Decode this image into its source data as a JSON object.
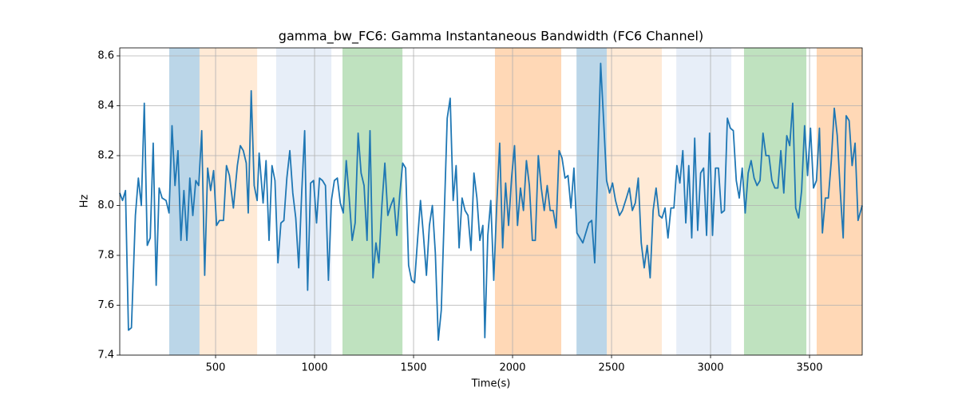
{
  "chart_data": {
    "type": "line",
    "title": "gamma_bw_FC6: Gamma Instantaneous Bandwidth (FC6 Channel)",
    "x_label": "Time(s)",
    "y_label": "Hz",
    "xlim": [
      16,
      3766
    ],
    "ylim": [
      7.4,
      8.632
    ],
    "xticks": [
      500,
      1000,
      1500,
      2000,
      2500,
      3000,
      3500
    ],
    "yticks": [
      7.4,
      7.6,
      7.8,
      {
        "value": 8.0,
        "label": "8.0"
      },
      8.2,
      8.4,
      8.6
    ],
    "grid": true,
    "span_alpha": 0.3,
    "spans": [
      {
        "x0": 266,
        "x1": 419,
        "color": "#1f77b4"
      },
      {
        "x0": 419,
        "x1": 710,
        "color": "#ffbb78"
      },
      {
        "x0": 806,
        "x1": 1085,
        "color": "#aec7e8"
      },
      {
        "x0": 1141,
        "x1": 1444,
        "color": "#2ca02c"
      },
      {
        "x0": 1911,
        "x1": 2246,
        "color": "#ff7f0e"
      },
      {
        "x0": 2323,
        "x1": 2476,
        "color": "#1f77b4"
      },
      {
        "x0": 2476,
        "x1": 2754,
        "color": "#ffbb78"
      },
      {
        "x0": 2827,
        "x1": 3105,
        "color": "#aec7e8"
      },
      {
        "x0": 3169,
        "x1": 3484,
        "color": "#2ca02c"
      },
      {
        "x0": 3536,
        "x1": 3766,
        "color": "#ff7f0e"
      }
    ],
    "series": [
      {
        "color": "#1f77b4",
        "x": [
          16,
          30,
          45,
          60,
          75,
          95,
          110,
          125,
          140,
          155,
          170,
          185,
          200,
          215,
          230,
          250,
          265,
          280,
          295,
          310,
          325,
          340,
          355,
          370,
          385,
          400,
          415,
          430,
          445,
          460,
          475,
          490,
          505,
          520,
          540,
          555,
          570,
          590,
          610,
          625,
          640,
          655,
          665,
          680,
          695,
          710,
          720,
          740,
          755,
          770,
          785,
          800,
          815,
          830,
          845,
          860,
          875,
          890,
          905,
          920,
          935,
          950,
          965,
          980,
          995,
          1010,
          1025,
          1040,
          1055,
          1070,
          1085,
          1100,
          1115,
          1130,
          1145,
          1160,
          1175,
          1190,
          1205,
          1220,
          1235,
          1250,
          1265,
          1280,
          1295,
          1310,
          1325,
          1340,
          1355,
          1370,
          1385,
          1400,
          1415,
          1430,
          1445,
          1460,
          1475,
          1490,
          1505,
          1520,
          1535,
          1550,
          1565,
          1580,
          1595,
          1610,
          1625,
          1640,
          1655,
          1670,
          1685,
          1700,
          1715,
          1730,
          1745,
          1760,
          1775,
          1790,
          1805,
          1820,
          1835,
          1850,
          1860,
          1875,
          1890,
          1905,
          1920,
          1935,
          1950,
          1965,
          1980,
          1995,
          2010,
          2025,
          2040,
          2055,
          2070,
          2085,
          2100,
          2115,
          2130,
          2145,
          2160,
          2175,
          2190,
          2205,
          2220,
          2235,
          2250,
          2265,
          2280,
          2295,
          2310,
          2325,
          2340,
          2355,
          2370,
          2385,
          2400,
          2415,
          2430,
          2445,
          2460,
          2475,
          2490,
          2505,
          2520,
          2540,
          2555,
          2575,
          2590,
          2605,
          2620,
          2635,
          2650,
          2665,
          2680,
          2695,
          2710,
          2725,
          2740,
          2755,
          2770,
          2785,
          2800,
          2815,
          2830,
          2845,
          2860,
          2875,
          2890,
          2905,
          2920,
          2935,
          2950,
          2965,
          2980,
          2995,
          3010,
          3025,
          3040,
          3055,
          3070,
          3085,
          3100,
          3115,
          3130,
          3145,
          3160,
          3175,
          3190,
          3205,
          3220,
          3235,
          3250,
          3265,
          3280,
          3295,
          3310,
          3325,
          3340,
          3355,
          3370,
          3385,
          3400,
          3415,
          3430,
          3445,
          3460,
          3475,
          3490,
          3505,
          3520,
          3535,
          3550,
          3565,
          3580,
          3595,
          3610,
          3625,
          3640,
          3655,
          3670,
          3685,
          3700,
          3715,
          3730,
          3745,
          3766
        ],
        "values": [
          8.05,
          8.02,
          8.06,
          7.5,
          7.51,
          7.96,
          8.11,
          8.0,
          8.41,
          7.84,
          7.87,
          8.25,
          7.68,
          8.07,
          8.03,
          8.02,
          7.97,
          8.32,
          8.08,
          8.22,
          7.86,
          8.06,
          7.86,
          8.11,
          7.96,
          8.1,
          8.08,
          8.3,
          7.72,
          8.15,
          8.06,
          8.14,
          7.92,
          7.94,
          7.94,
          8.16,
          8.12,
          7.99,
          8.16,
          8.24,
          8.22,
          8.17,
          7.97,
          8.46,
          8.08,
          8.02,
          8.21,
          8.01,
          8.18,
          7.86,
          8.16,
          8.1,
          7.77,
          7.93,
          7.94,
          8.11,
          8.22,
          8.05,
          7.95,
          7.75,
          8.05,
          8.3,
          7.66,
          8.09,
          8.1,
          7.93,
          8.11,
          8.1,
          8.08,
          7.7,
          8.02,
          8.1,
          8.11,
          8.01,
          7.97,
          8.18,
          8.03,
          7.86,
          7.93,
          8.29,
          8.13,
          8.08,
          7.86,
          8.3,
          7.71,
          7.85,
          7.77,
          8.0,
          8.17,
          7.96,
          8.0,
          8.03,
          7.88,
          8.04,
          8.17,
          8.15,
          7.76,
          7.7,
          7.69,
          7.86,
          8.02,
          7.88,
          7.72,
          7.92,
          8.0,
          7.81,
          7.46,
          7.58,
          7.96,
          8.35,
          8.43,
          8.02,
          8.16,
          7.83,
          8.03,
          7.98,
          7.96,
          7.82,
          8.13,
          8.03,
          7.86,
          7.92,
          7.47,
          7.88,
          8.02,
          7.7,
          8.0,
          8.25,
          7.83,
          8.09,
          7.92,
          8.11,
          8.24,
          7.92,
          8.07,
          7.98,
          8.18,
          8.08,
          7.86,
          7.86,
          8.2,
          8.07,
          7.98,
          8.08,
          7.98,
          7.98,
          7.91,
          8.22,
          8.19,
          8.11,
          8.12,
          7.99,
          8.15,
          7.89,
          7.87,
          7.85,
          7.89,
          7.93,
          7.94,
          7.77,
          8.15,
          8.57,
          8.34,
          8.1,
          8.05,
          8.09,
          8.02,
          7.96,
          7.98,
          8.03,
          8.07,
          7.98,
          8.01,
          8.11,
          7.85,
          7.75,
          7.84,
          7.71,
          7.98,
          8.07,
          7.96,
          7.95,
          7.99,
          7.87,
          7.99,
          7.99,
          8.16,
          8.09,
          8.22,
          7.93,
          8.16,
          7.87,
          8.27,
          7.9,
          8.13,
          8.15,
          7.88,
          8.29,
          7.88,
          8.15,
          8.15,
          7.97,
          7.98,
          8.35,
          8.31,
          8.3,
          8.1,
          8.03,
          8.15,
          7.97,
          8.13,
          8.18,
          8.11,
          8.08,
          8.1,
          8.29,
          8.2,
          8.2,
          8.1,
          8.07,
          8.07,
          8.22,
          8.05,
          8.28,
          8.24,
          8.41,
          7.99,
          7.95,
          8.06,
          8.32,
          8.12,
          8.31,
          8.07,
          8.1,
          8.31,
          7.89,
          8.03,
          8.03,
          8.18,
          8.39,
          8.28,
          8.06,
          7.87,
          8.36,
          8.34,
          8.16,
          8.25,
          7.94,
          8.0
        ]
      }
    ]
  }
}
